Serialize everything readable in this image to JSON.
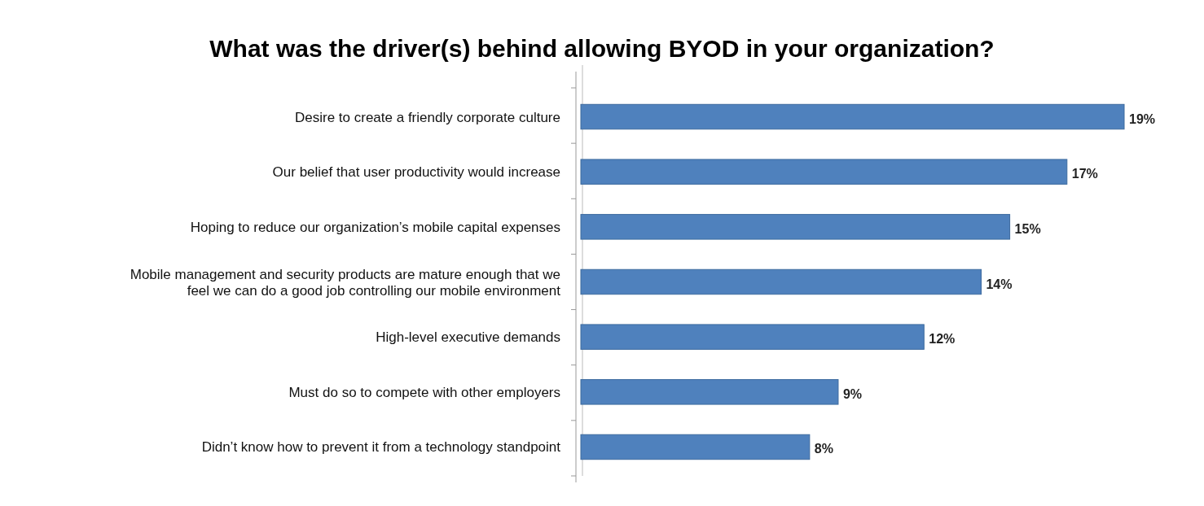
{
  "chart_data": {
    "type": "bar",
    "orientation": "horizontal",
    "title": "What was the driver(s) behind allowing BYOD in your organization?",
    "categories": [
      "Desire to create a friendly corporate culture",
      "Our belief that user productivity would increase",
      "Hoping to reduce our organization’s mobile capital expenses",
      "Mobile management and security products are mature enough that we feel we can do a good job controlling our mobile environment",
      "High-level executive demands",
      "Must do so to compete with other employers",
      "Didn’t know how to prevent it from a technology standpoint"
    ],
    "values": [
      19,
      17,
      15,
      14,
      12,
      9,
      8
    ],
    "value_labels": [
      "19%",
      "17%",
      "15%",
      "14%",
      "12%",
      "9%",
      "8%"
    ],
    "xlim": [
      0,
      19
    ],
    "color": "#4f81bd"
  }
}
